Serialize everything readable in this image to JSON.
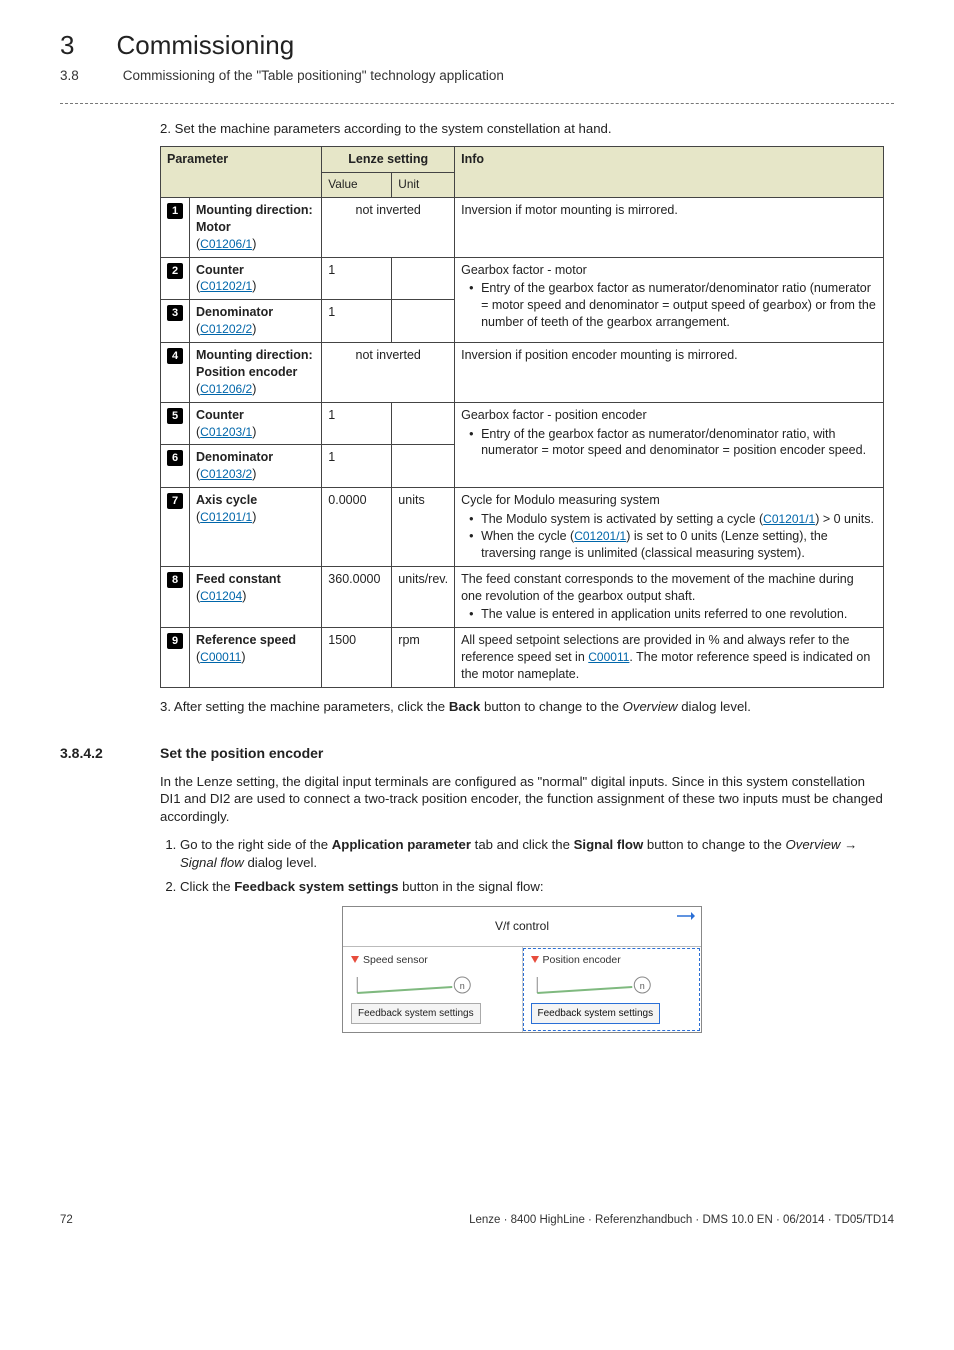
{
  "chapter": {
    "num": "3",
    "title": "Commissioning"
  },
  "section": {
    "num": "3.8",
    "title": "Commissioning of the \"Table positioning\" technology application"
  },
  "step2": "2. Set the machine parameters according to the system constellation at hand.",
  "table": {
    "headers": {
      "param": "Parameter",
      "lenze": "Lenze setting",
      "info": "Info",
      "value": "Value",
      "unit": "Unit"
    },
    "rows": [
      {
        "n": "1",
        "name": "Mounting direction: Motor",
        "code": "C01206/1",
        "value": "not inverted",
        "unit": "",
        "value_colspan": 2,
        "info_html": "Inversion if motor mounting is mirrored.",
        "rowspan_info": 1
      },
      {
        "n": "2",
        "name": "Counter",
        "code": "C01202/1",
        "value": "1",
        "unit": "",
        "info_html": "Gearbox factor - motor<ul class='info'><li>Entry of the gearbox factor as numerator/denominator ratio (numerator = motor speed and denominator = output speed of gearbox) or from the number of teeth of the gearbox arrangement.</li></ul>",
        "rowspan_info": 2
      },
      {
        "n": "3",
        "name": "Denominator",
        "code": "C01202/2",
        "value": "1",
        "unit": ""
      },
      {
        "n": "4",
        "name": "Mounting direction: Position encoder",
        "code": "C01206/2",
        "value": "not inverted",
        "unit": "",
        "value_colspan": 2,
        "info_html": "Inversion if position encoder mounting is mirrored.",
        "rowspan_info": 1
      },
      {
        "n": "5",
        "name": "Counter",
        "code": "C01203/1",
        "value": "1",
        "unit": "",
        "info_html": "Gearbox factor - position encoder<ul class='info'><li>Entry of the gearbox factor as numerator/denominator ratio, with numerator = motor speed and denominator = position encoder speed.</li></ul>",
        "rowspan_info": 2
      },
      {
        "n": "6",
        "name": "Denominator",
        "code": "C01203/2",
        "value": "1",
        "unit": ""
      },
      {
        "n": "7",
        "name": "Axis cycle",
        "code": "C01201/1",
        "value": "0.0000",
        "unit": "units",
        "info_html": "Cycle for Modulo measuring system<ul class='info'><li>The Modulo system is activated by setting a cycle (<span class='code-link'>C01201/1</span>) &gt; 0 units.</li><li>When the cycle (<span class='code-link'>C01201/1</span>) is set to 0 units (Lenze setting), the traversing range is unlimited (classical measuring system).</li></ul>",
        "rowspan_info": 1
      },
      {
        "n": "8",
        "name": "Feed constant",
        "code": "C01204",
        "value": "360.0000",
        "unit": "units/rev.",
        "info_html": "The feed constant corresponds to the movement of the machine during one revolution of the gearbox output shaft.<ul class='info'><li>The value is entered in application units referred to one revolution.</li></ul>",
        "rowspan_info": 1
      },
      {
        "n": "9",
        "name": "Reference speed",
        "code": "C00011",
        "value": "1500",
        "unit": "rpm",
        "info_html": "All speed setpoint selections are provided in % and always refer to the reference speed set in <span class='code-link'>C00011</span>. The motor reference speed is indicated on the motor nameplate.",
        "rowspan_info": 1
      }
    ]
  },
  "step3_prefix": "3. After setting the machine parameters, click the ",
  "step3_bold": "Back",
  "step3_mid": " button to change to the ",
  "step3_italic": "Overview",
  "step3_suffix": " dialog level.",
  "subsection": {
    "num": "3.8.4.2",
    "title": "Set the position encoder",
    "para": "In the Lenze setting, the digital input terminals are configured as \"normal\" digital inputs. Since in this system constellation DI1 and DI2 are used to connect a two-track position encoder, the function assignment of these two inputs must be changed accordingly.",
    "step1_a": "Go to the right side of the ",
    "step1_b": "Application parameter",
    "step1_c": " tab and click the ",
    "step1_d": "Signal flow",
    "step1_e": " button to change to the ",
    "step1_f": "Overview",
    "step1_g": " → ",
    "step1_h": "Signal flow",
    "step1_i": " dialog level.",
    "step2_a": "Click the ",
    "step2_b": "Feedback system settings",
    "step2_c": " button in the signal flow:"
  },
  "diagram": {
    "title": "V/f control",
    "left_header": "Speed sensor",
    "right_header": "Position encoder",
    "btn": "Feedback system settings",
    "colors": {
      "accent": "#2a6fd6",
      "marker": "#e74c3c"
    }
  },
  "footer": {
    "page": "72",
    "right": "Lenze · 8400 HighLine · Referenzhandbuch · DMS 10.0 EN · 06/2014 · TD05/TD14"
  }
}
